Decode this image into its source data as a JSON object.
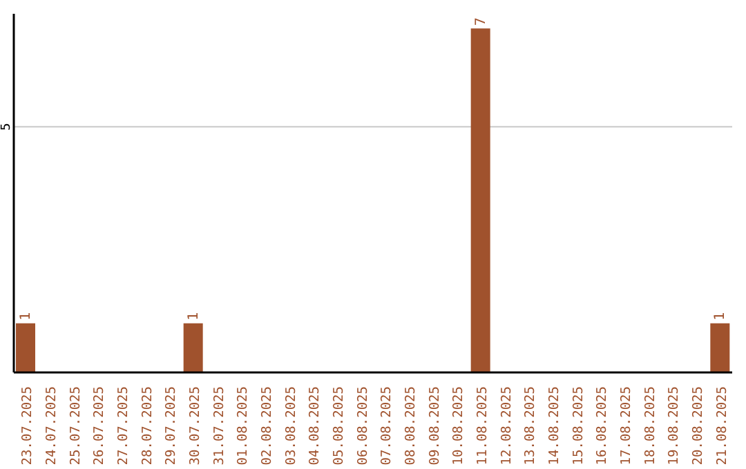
{
  "chart_data": {
    "type": "bar",
    "categories": [
      "23.07.2025",
      "24.07.2025",
      "25.07.2025",
      "26.07.2025",
      "27.07.2025",
      "28.07.2025",
      "29.07.2025",
      "30.07.2025",
      "31.07.2025",
      "01.08.2025",
      "02.08.2025",
      "03.08.2025",
      "04.08.2025",
      "05.08.2025",
      "06.08.2025",
      "07.08.2025",
      "08.08.2025",
      "09.08.2025",
      "10.08.2025",
      "11.08.2025",
      "12.08.2025",
      "13.08.2025",
      "14.08.2025",
      "15.08.2025",
      "16.08.2025",
      "17.08.2025",
      "18.08.2025",
      "19.08.2025",
      "20.08.2025",
      "21.08.2025"
    ],
    "values": [
      1,
      0,
      0,
      0,
      0,
      0,
      0,
      1,
      0,
      0,
      0,
      0,
      0,
      0,
      0,
      0,
      0,
      0,
      0,
      7,
      0,
      0,
      0,
      0,
      0,
      0,
      0,
      0,
      0,
      1
    ],
    "value_labels": [
      "1",
      null,
      null,
      null,
      null,
      null,
      null,
      "1",
      null,
      null,
      null,
      null,
      null,
      null,
      null,
      null,
      null,
      null,
      null,
      "7",
      null,
      null,
      null,
      null,
      null,
      null,
      null,
      null,
      null,
      "1"
    ],
    "color": "#a0522d",
    "ylim": [
      0,
      7.3
    ],
    "yticks": [
      5
    ],
    "grid": "y"
  }
}
